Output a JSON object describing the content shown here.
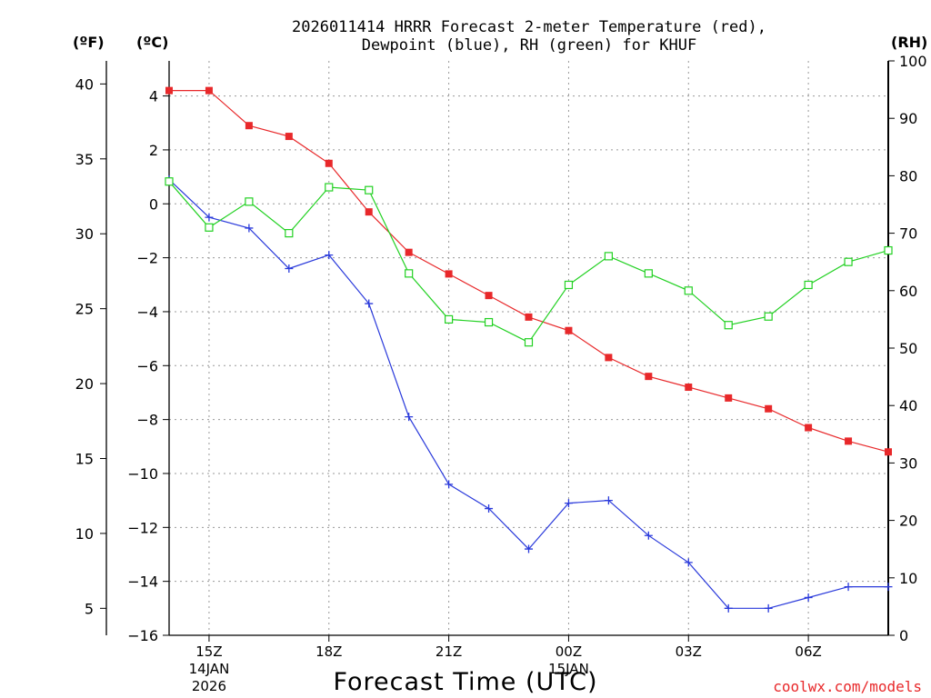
{
  "chart_data": {
    "type": "line",
    "title_line1": "2026011414 HRRR Forecast 2-meter Temperature (red),",
    "title_line2": "Dewpoint (blue), RH (green) for KHUF",
    "unit_f": "(ºF)",
    "unit_c": "(ºC)",
    "unit_rh": "(RH)",
    "xlabel": "Forecast Time (UTC)",
    "credit": "coolwx.com/models",
    "x_hours": [
      14,
      15,
      16,
      17,
      18,
      19,
      20,
      21,
      22,
      23,
      24,
      25,
      26,
      27,
      28,
      29,
      30,
      31,
      32
    ],
    "xlim": [
      14,
      32
    ],
    "x_ticks": [
      {
        "hour": 15,
        "label": "15Z",
        "sub1": "14JAN",
        "sub2": "2026"
      },
      {
        "hour": 18,
        "label": "18Z",
        "sub1": "",
        "sub2": ""
      },
      {
        "hour": 21,
        "label": "21Z",
        "sub1": "",
        "sub2": ""
      },
      {
        "hour": 24,
        "label": "00Z",
        "sub1": "15JAN",
        "sub2": ""
      },
      {
        "hour": 27,
        "label": "03Z",
        "sub1": "",
        "sub2": ""
      },
      {
        "hour": 30,
        "label": "06Z",
        "sub1": "",
        "sub2": ""
      }
    ],
    "ylim_c": [
      -16,
      5.3
    ],
    "y_ticks_c": [
      {
        "v": 4,
        "label": "4"
      },
      {
        "v": 2,
        "label": "2"
      },
      {
        "v": 0,
        "label": "0"
      },
      {
        "v": -2,
        "label": "−2"
      },
      {
        "v": -4,
        "label": "−4"
      },
      {
        "v": -6,
        "label": "−6"
      },
      {
        "v": -8,
        "label": "−8"
      },
      {
        "v": -10,
        "label": "−10"
      },
      {
        "v": -12,
        "label": "−12"
      },
      {
        "v": -14,
        "label": "−14"
      },
      {
        "v": -16,
        "label": "−16"
      }
    ],
    "y_ticks_f": [
      {
        "v": 40,
        "label": "40"
      },
      {
        "v": 35,
        "label": "35"
      },
      {
        "v": 30,
        "label": "30"
      },
      {
        "v": 25,
        "label": "25"
      },
      {
        "v": 20,
        "label": "20"
      },
      {
        "v": 15,
        "label": "15"
      },
      {
        "v": 10,
        "label": "10"
      },
      {
        "v": 5,
        "label": "5"
      }
    ],
    "ylim_rh": [
      0,
      100
    ],
    "y_ticks_rh": [
      {
        "v": 100,
        "label": "100"
      },
      {
        "v": 90,
        "label": "90"
      },
      {
        "v": 80,
        "label": "80"
      },
      {
        "v": 70,
        "label": "70"
      },
      {
        "v": 60,
        "label": "60"
      },
      {
        "v": 50,
        "label": "50"
      },
      {
        "v": 40,
        "label": "40"
      },
      {
        "v": 30,
        "label": "30"
      },
      {
        "v": 20,
        "label": "20"
      },
      {
        "v": 10,
        "label": "10"
      },
      {
        "v": 0,
        "label": "0"
      }
    ],
    "series": [
      {
        "name": "Temperature",
        "axis": "c",
        "color": "#e8282a",
        "marker": "filled-square",
        "values": [
          4.2,
          4.2,
          2.9,
          2.5,
          1.5,
          -0.3,
          -1.8,
          -2.6,
          -3.4,
          -4.2,
          -4.7,
          -5.7,
          -6.4,
          -6.8,
          -7.2,
          -7.6,
          -8.3,
          -8.8,
          -9.2
        ]
      },
      {
        "name": "Dewpoint",
        "axis": "c",
        "color": "#2a3adb",
        "marker": "plus",
        "values": [
          0.9,
          -0.5,
          -0.9,
          -2.4,
          -1.9,
          -3.7,
          -7.9,
          -10.4,
          -11.3,
          -12.8,
          -11.1,
          -11.0,
          -12.3,
          -13.3,
          -15.0,
          -15.0,
          -14.6,
          -14.2,
          -14.2
        ]
      },
      {
        "name": "RH",
        "axis": "rh",
        "color": "#23d123",
        "marker": "open-square",
        "values": [
          79,
          71,
          75.5,
          70,
          78,
          77.5,
          63,
          55,
          54.5,
          51,
          61,
          66,
          63,
          60,
          54,
          55.5,
          61,
          65,
          67
        ]
      }
    ]
  }
}
